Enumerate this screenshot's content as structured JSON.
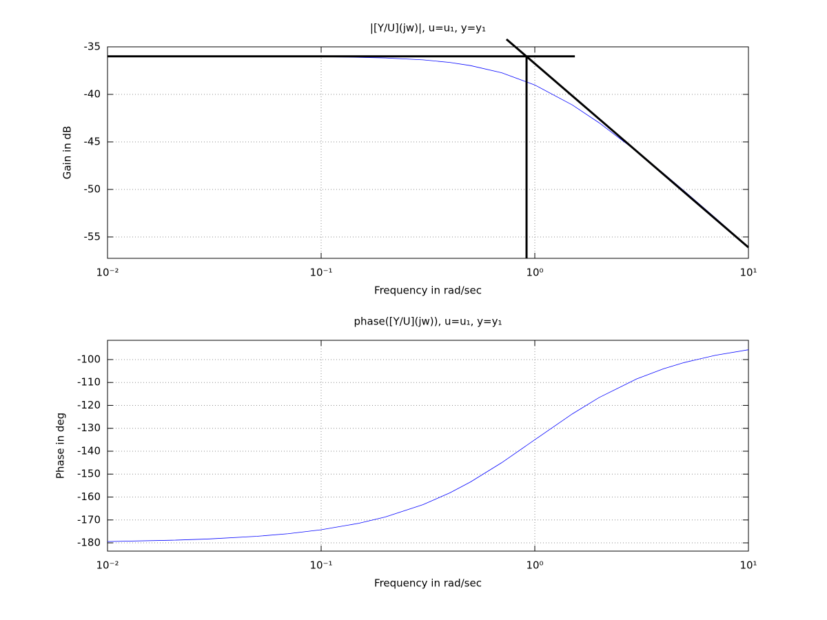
{
  "chart_data": [
    {
      "type": "line",
      "title": "|[Y/U](jw)|, u=u₁, y=y₁",
      "x_label": "Frequency in rad/sec",
      "y_label": "Gain in dB",
      "x_scale": "log",
      "grid": true,
      "xlim": [
        0.01,
        10
      ],
      "xticks": [
        {
          "value": 0.01,
          "label": "10⁻²"
        },
        {
          "value": 0.1,
          "label": "10⁻¹"
        },
        {
          "value": 1,
          "label": "10⁰"
        },
        {
          "value": 10,
          "label": "10¹"
        }
      ],
      "ylim": [
        -57.25,
        -35
      ],
      "yticks": [
        -55,
        -50,
        -45,
        -40,
        -35
      ],
      "series": [
        {
          "color": "#0000ff",
          "line_width": 0.8,
          "x": [
            0.01,
            0.02,
            0.03,
            0.05,
            0.07,
            0.1,
            0.15,
            0.2,
            0.3,
            0.4,
            0.5,
            0.7,
            1,
            1.5,
            2,
            3,
            4,
            5,
            7,
            10
          ],
          "values": [
            -36.0,
            -36.0,
            -36.0,
            -36.01,
            -36.02,
            -36.04,
            -36.1,
            -36.17,
            -36.37,
            -36.64,
            -36.97,
            -37.73,
            -39.01,
            -41.12,
            -42.99,
            -46.0,
            -48.3,
            -50.15,
            -52.99,
            -56.04
          ]
        },
        {
          "color": "#000000",
          "line_width": 3,
          "x": [
            0.01,
            1.54
          ],
          "values": [
            -36,
            -36
          ]
        },
        {
          "color": "#000000",
          "line_width": 3,
          "x": [
            0.737,
            10
          ],
          "values": [
            -34.2,
            -56.1
          ]
        },
        {
          "color": "#000000",
          "line_width": 3,
          "x": [
            0.915,
            0.915
          ],
          "values": [
            -36,
            -57.25
          ]
        }
      ]
    },
    {
      "type": "line",
      "title": "phase([Y/U](jw)), u=u₁, y=y₁",
      "x_label": "Frequency in rad/sec",
      "y_label": "Phase in deg",
      "x_scale": "log",
      "grid": true,
      "xlim": [
        0.01,
        10
      ],
      "xticks": [
        {
          "value": 0.01,
          "label": "10⁻²"
        },
        {
          "value": 0.1,
          "label": "10⁻¹"
        },
        {
          "value": 1,
          "label": "10⁰"
        },
        {
          "value": 10,
          "label": "10¹"
        }
      ],
      "ylim": [
        -183.6,
        -91.6
      ],
      "yticks": [
        -180,
        -170,
        -160,
        -150,
        -140,
        -130,
        -120,
        -110,
        -100
      ],
      "series": [
        {
          "color": "#0000ff",
          "line_width": 0.8,
          "x": [
            0.01,
            0.02,
            0.03,
            0.05,
            0.07,
            0.1,
            0.15,
            0.2,
            0.3,
            0.4,
            0.5,
            0.7,
            1,
            1.5,
            2,
            3,
            4,
            5,
            7,
            10
          ],
          "values": [
            -179.43,
            -178.85,
            -178.28,
            -177.14,
            -176.0,
            -174.29,
            -171.47,
            -168.69,
            -163.3,
            -158.2,
            -153.43,
            -145.01,
            -135,
            -123.69,
            -116.57,
            -108.43,
            -104.04,
            -101.31,
            -98.13,
            -95.71
          ]
        }
      ]
    }
  ]
}
